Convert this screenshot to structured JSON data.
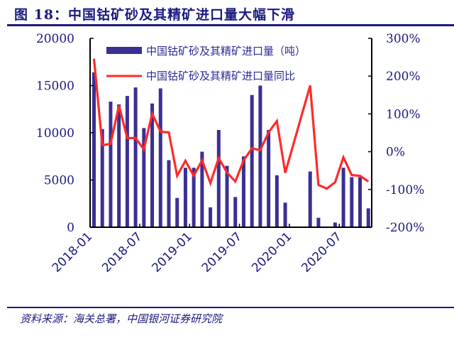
{
  "header": {
    "title": "图 18：中国钴矿砂及其精矿进口量大幅下滑"
  },
  "footer": {
    "source": "资料来源：海关总署，中国银河证券研究院"
  },
  "colors": {
    "bar": "#3a3093",
    "line": "#ff2a2a",
    "text": "#1a1a80",
    "axis": "#000000"
  },
  "chart_data": {
    "type": "bar+line",
    "title": "中国钴矿砂及其精矿进口量大幅下滑",
    "xlabel": "",
    "ylabel_left": "",
    "ylabel_right": "",
    "ylim_left": [
      0,
      20000
    ],
    "ylim_right": [
      -200,
      300
    ],
    "yticks_left": [
      "0",
      "5000",
      "10000",
      "15000",
      "20000"
    ],
    "yticks_right": [
      "-200%",
      "-100%",
      "0%",
      "100%",
      "200%",
      "300%"
    ],
    "xtick_labels": [
      "2018-01",
      "2018-07",
      "2019-01",
      "2019-07",
      "2020-01",
      "2020-07"
    ],
    "grid": false,
    "legend_position": "top-inside",
    "categories": [
      "2018-01",
      "2018-02",
      "2018-03",
      "2018-04",
      "2018-05",
      "2018-06",
      "2018-07",
      "2018-08",
      "2018-09",
      "2018-10",
      "2018-11",
      "2018-12",
      "2019-01",
      "2019-02",
      "2019-03",
      "2019-04",
      "2019-05",
      "2019-06",
      "2019-07",
      "2019-08",
      "2019-09",
      "2019-10",
      "2019-11",
      "2019-12",
      "2020-01",
      "2020-02",
      "2020-03",
      "2020-04",
      "2020-05",
      "2020-06",
      "2020-07",
      "2020-08",
      "2020-09",
      "2020-10"
    ],
    "series": [
      {
        "name": "中国钴矿砂及其精矿进口量（吨）",
        "type": "bar",
        "axis": "left",
        "values": [
          16400,
          10400,
          13300,
          13000,
          13900,
          14800,
          10500,
          13100,
          14700,
          7100,
          3100,
          6300,
          6300,
          8000,
          2100,
          10300,
          6500,
          3200,
          7500,
          14000,
          15000,
          10300,
          5500,
          2600,
          0,
          0,
          5900,
          1000,
          0,
          500,
          6300,
          5300,
          5300,
          2000
        ]
      },
      {
        "name": "中国钴矿砂及其精矿进口量同比",
        "type": "line",
        "axis": "right",
        "unit": "%",
        "values": [
          246,
          17,
          21,
          122,
          36,
          36,
          6,
          101,
          53,
          51,
          -64,
          -24,
          -64,
          -23,
          -83,
          -17,
          -55,
          -79,
          -23,
          9,
          4,
          51,
          81,
          -56,
          null,
          null,
          175,
          -88,
          -98,
          -81,
          -15,
          -62,
          -64,
          -79
        ]
      }
    ]
  }
}
